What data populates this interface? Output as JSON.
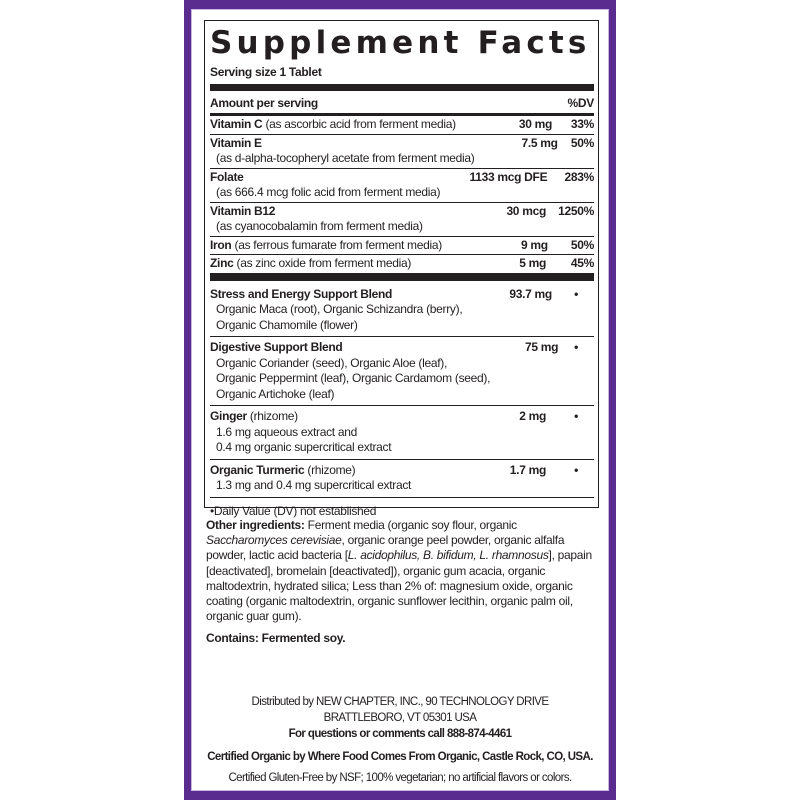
{
  "colors": {
    "frame": "#5b2c8f",
    "text": "#231f20"
  },
  "title": "Supplement Facts",
  "serving_size": "Serving size 1 Tablet",
  "header": {
    "amount": "Amount per serving",
    "dv": "%DV"
  },
  "nutrients": [
    {
      "name": "Vitamin C",
      "desc": " (as ascorbic acid from ferment media)",
      "sub": "",
      "amount": "30 mg",
      "dv": "33%"
    },
    {
      "name": "Vitamin E",
      "desc": "",
      "sub": "(as d-alpha-tocopheryl acetate from ferment media)",
      "amount": "7.5 mg",
      "dv": "50%"
    },
    {
      "name": "Folate",
      "desc": "",
      "sub": "(as 666.4 mcg folic acid from ferment media)",
      "amount": "1133 mcg DFE",
      "dv": "283%"
    },
    {
      "name": "Vitamin B12",
      "desc": "",
      "sub": "(as cyanocobalamin from ferment media)",
      "amount": "30 mcg",
      "dv": "1250%"
    },
    {
      "name": "Iron",
      "desc": " (as ferrous fumarate from ferment media)",
      "sub": "",
      "amount": "9 mg",
      "dv": "50%"
    },
    {
      "name": "Zinc",
      "desc": " (as zinc oxide from ferment media)",
      "sub": "",
      "amount": "5 mg",
      "dv": "45%"
    }
  ],
  "blends": [
    {
      "name": "Stress and Energy Support Blend",
      "desc": "",
      "lines": [
        "Organic Maca (root), Organic Schizandra (berry),",
        "Organic Chamomile (flower)"
      ],
      "amount": "93.7 mg",
      "dv": "•"
    },
    {
      "name": "Digestive Support Blend",
      "desc": "",
      "lines": [
        "Organic Coriander (seed), Organic Aloe (leaf),",
        "Organic Peppermint (leaf), Organic Cardamom (seed),",
        "Organic Artichoke (leaf)"
      ],
      "amount": "75 mg",
      "dv": "•"
    },
    {
      "name": "Ginger",
      "desc": " (rhizome)",
      "lines": [
        "1.6 mg aqueous extract and",
        "0.4 mg organic supercritical extract"
      ],
      "amount": "2 mg",
      "dv": "•"
    },
    {
      "name": "Organic Turmeric",
      "desc": " (rhizome)",
      "lines": [
        "1.3 mg and 0.4 mg supercritical extract"
      ],
      "amount": "1.7 mg",
      "dv": "•"
    }
  ],
  "footnote": "•Daily Value (DV) not established",
  "other": {
    "label": "Other ingredients:",
    "p1": " Ferment media (organic soy flour, organic ",
    "i1": "Saccharomyces cerevisiae",
    "p2": ", organic orange peel powder, organic alfalfa powder, lactic acid bacteria [",
    "i2": "L. acidophilus, B. bifidum, L. rhamnosus",
    "p3": "], papain [deactivated], bromelain [deactivated]), organic gum acacia, organic maltodextrin, hydrated silica; Less than 2% of: magnesium oxide, organic coating (organic maltodextrin, organic sunflower lecithin, organic palm oil, organic guar gum)."
  },
  "contains": "Contains: Fermented soy.",
  "distributor": [
    "Distributed by NEW CHAPTER, INC., 90 TECHNOLOGY DRIVE",
    "BRATTLEBORO, VT 05301 USA"
  ],
  "questions": "For questions or comments call 888-874-4461",
  "certified_organic": "Certified Organic by Where Food Comes From Organic, Castle Rock, CO, USA.",
  "certified_gf": "Certified Gluten-Free by NSF; 100% vegetarian; no artificial flavors or colors."
}
